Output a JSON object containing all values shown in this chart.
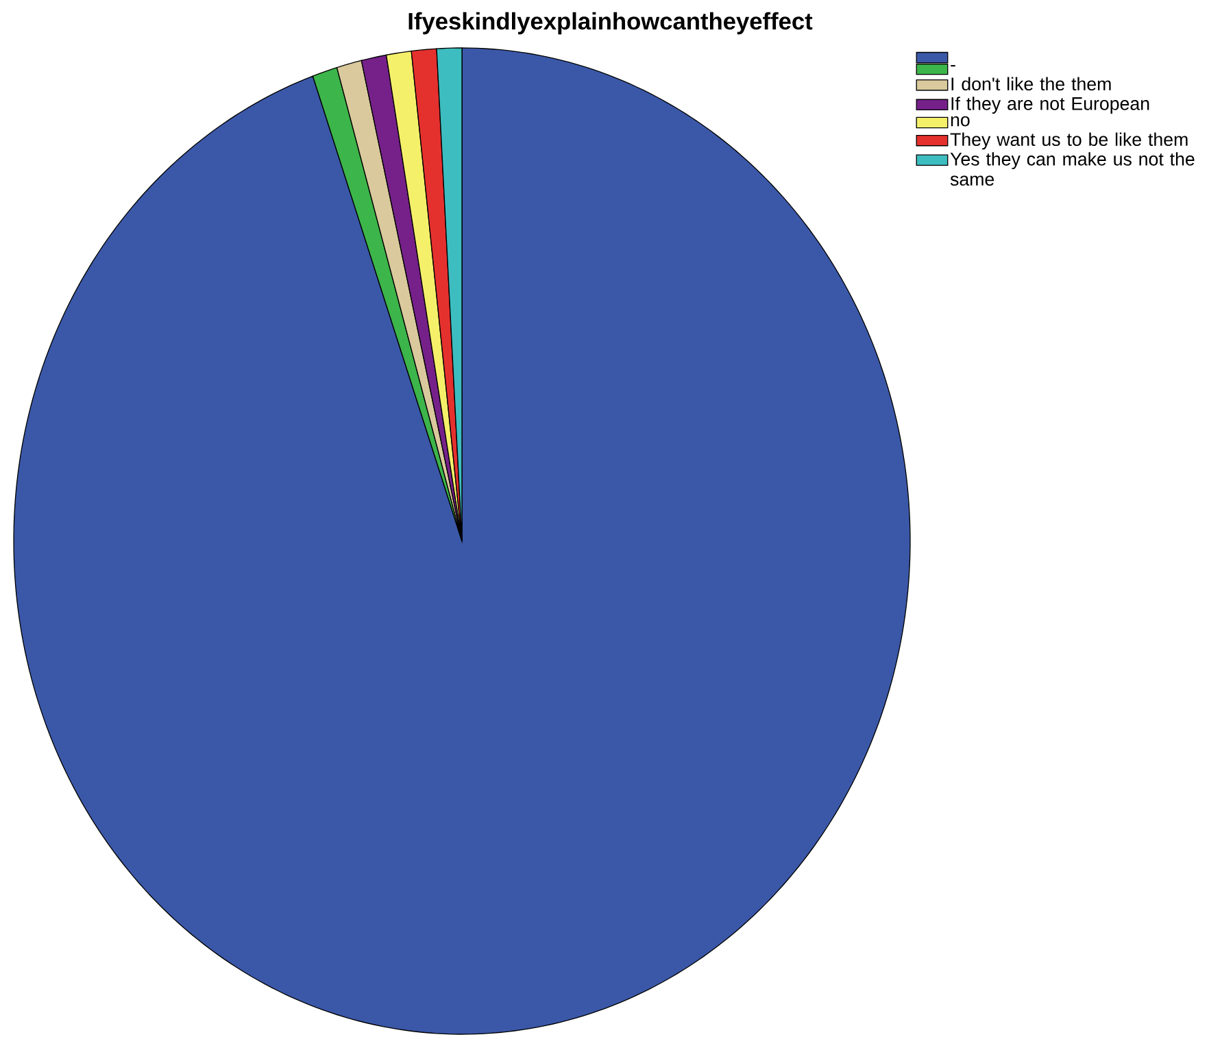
{
  "chart_data": {
    "type": "pie",
    "title": "Ifyeskindlyexplainhowcantheyeffect",
    "categories": [
      null,
      "-",
      "I don't like the them",
      "If they are not European",
      "no",
      "They want us to be like them",
      "Yes they can make us not the same"
    ],
    "values": [
      94.6,
      0.9,
      0.9,
      0.9,
      0.9,
      0.9,
      0.9
    ],
    "colors": [
      "#3b58a8",
      "#3cb54a",
      "#d9c99c",
      "#76218a",
      "#f5f06a",
      "#e5312e",
      "#3dbdc0"
    ],
    "legend": "top right"
  }
}
